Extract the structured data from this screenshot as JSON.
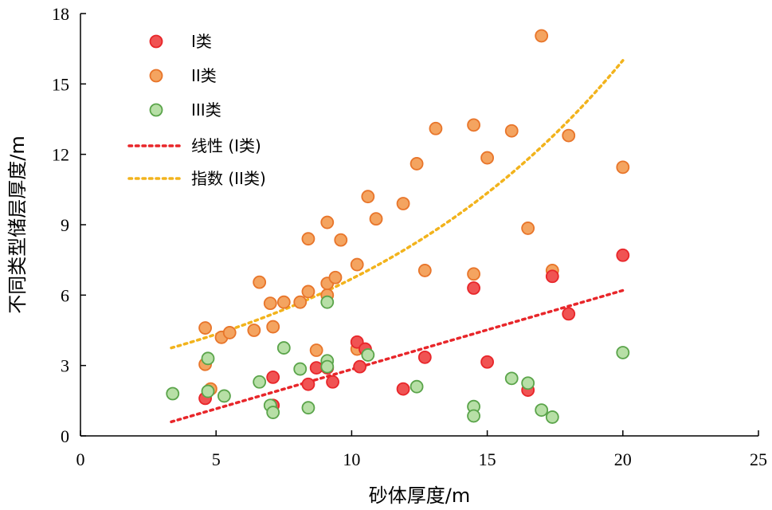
{
  "chart_data": {
    "type": "scatter",
    "title": "",
    "xlabel": "砂体厚度/m",
    "ylabel": "不同类型储层厚度/m",
    "xlim": [
      0,
      25
    ],
    "ylim": [
      0,
      18
    ],
    "xticks": [
      0,
      5,
      10,
      15,
      20,
      25
    ],
    "yticks": [
      0,
      3,
      6,
      9,
      12,
      15,
      18
    ],
    "grid": false,
    "legend_position": "top-left",
    "series": [
      {
        "name": "I类",
        "color": "#e8262a",
        "fill": "#f05353",
        "points": [
          [
            4.6,
            1.6
          ],
          [
            7.1,
            1.3
          ],
          [
            7.1,
            2.5
          ],
          [
            8.4,
            2.2
          ],
          [
            8.7,
            2.9
          ],
          [
            9.1,
            2.9
          ],
          [
            9.3,
            2.3
          ],
          [
            10.2,
            4.0
          ],
          [
            10.3,
            2.95
          ],
          [
            10.5,
            3.7
          ],
          [
            11.9,
            2.0
          ],
          [
            12.7,
            3.35
          ],
          [
            14.5,
            6.3
          ],
          [
            15.0,
            3.15
          ],
          [
            16.5,
            1.95
          ],
          [
            17.4,
            6.8
          ],
          [
            18.0,
            5.2
          ],
          [
            20.0,
            7.7
          ]
        ]
      },
      {
        "name": "II类",
        "color": "#e8752a",
        "fill": "#f4a460",
        "points": [
          [
            4.6,
            4.6
          ],
          [
            4.6,
            3.05
          ],
          [
            4.8,
            2.0
          ],
          [
            5.2,
            4.2
          ],
          [
            5.5,
            4.4
          ],
          [
            6.4,
            4.5
          ],
          [
            6.6,
            6.55
          ],
          [
            7.0,
            5.65
          ],
          [
            7.1,
            4.65
          ],
          [
            7.5,
            5.7
          ],
          [
            8.1,
            5.7
          ],
          [
            8.4,
            6.15
          ],
          [
            8.4,
            8.4
          ],
          [
            8.7,
            3.65
          ],
          [
            9.1,
            9.1
          ],
          [
            9.1,
            6.0
          ],
          [
            9.1,
            6.5
          ],
          [
            9.4,
            6.75
          ],
          [
            9.6,
            8.35
          ],
          [
            10.2,
            7.3
          ],
          [
            10.2,
            3.7
          ],
          [
            10.6,
            10.2
          ],
          [
            10.9,
            9.25
          ],
          [
            11.9,
            9.9
          ],
          [
            12.4,
            11.6
          ],
          [
            12.7,
            7.05
          ],
          [
            13.1,
            13.1
          ],
          [
            14.5,
            13.25
          ],
          [
            14.5,
            6.9
          ],
          [
            15.0,
            11.85
          ],
          [
            15.9,
            13.0
          ],
          [
            16.5,
            8.85
          ],
          [
            17.0,
            17.05
          ],
          [
            17.4,
            7.05
          ],
          [
            18.0,
            12.8
          ],
          [
            20.0,
            11.45
          ]
        ]
      },
      {
        "name": "III类",
        "color": "#5aa44a",
        "fill": "#b7dfa6",
        "points": [
          [
            3.4,
            1.8
          ],
          [
            4.7,
            1.9
          ],
          [
            4.7,
            3.3
          ],
          [
            5.3,
            1.7
          ],
          [
            6.6,
            2.3
          ],
          [
            7.0,
            1.3
          ],
          [
            7.1,
            1.0
          ],
          [
            7.5,
            3.75
          ],
          [
            8.1,
            2.85
          ],
          [
            8.4,
            1.2
          ],
          [
            9.1,
            5.7
          ],
          [
            9.1,
            3.2
          ],
          [
            9.1,
            2.95
          ],
          [
            10.6,
            3.45
          ],
          [
            12.4,
            2.1
          ],
          [
            14.5,
            1.25
          ],
          [
            14.5,
            0.85
          ],
          [
            15.9,
            2.45
          ],
          [
            16.5,
            2.25
          ],
          [
            17.0,
            1.1
          ],
          [
            17.4,
            0.8
          ],
          [
            20.0,
            3.55
          ]
        ]
      }
    ],
    "trendlines": [
      {
        "name": "线性 (I类)",
        "kind": "linear",
        "color": "#e8262a",
        "x_range": [
          3.35,
          20.0
        ],
        "y_range": [
          0.6,
          6.2
        ]
      },
      {
        "name": "指数 (II类)",
        "kind": "exponential",
        "color": "#f2b31c",
        "x_range": [
          3.35,
          20.0
        ],
        "y_range": [
          3.75,
          16.0
        ]
      }
    ]
  }
}
